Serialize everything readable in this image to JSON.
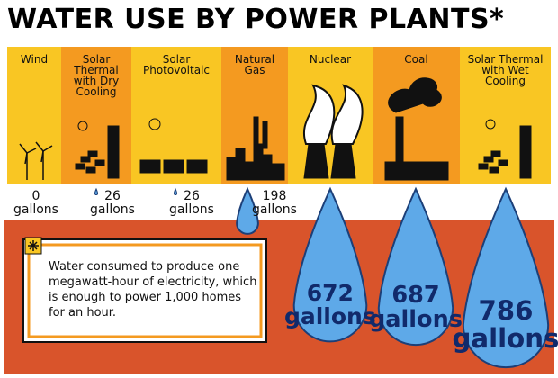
{
  "chart_data": {
    "type": "drop",
    "title": "WATER USE BY POWER PLANTS*",
    "categories": [
      "Wind",
      "Solar Thermal with Dry Cooling",
      "Solar Photovoltaic",
      "Natural Gas",
      "Nuclear",
      "Coal",
      "Solar Thermal with Wet Cooling"
    ],
    "values": [
      0,
      26,
      26,
      198,
      672,
      687,
      786
    ],
    "value_labels": [
      "0 gallons",
      "26 gallons",
      "26 gallons",
      "198 gallons",
      "672 gallons",
      "687 gallons",
      "786 gallons"
    ],
    "color": "#5ea9e8",
    "note": "Water consumed to produce one megawatt-hour of electricity, which is enough to power 1,000 homes for an hour."
  }
}
